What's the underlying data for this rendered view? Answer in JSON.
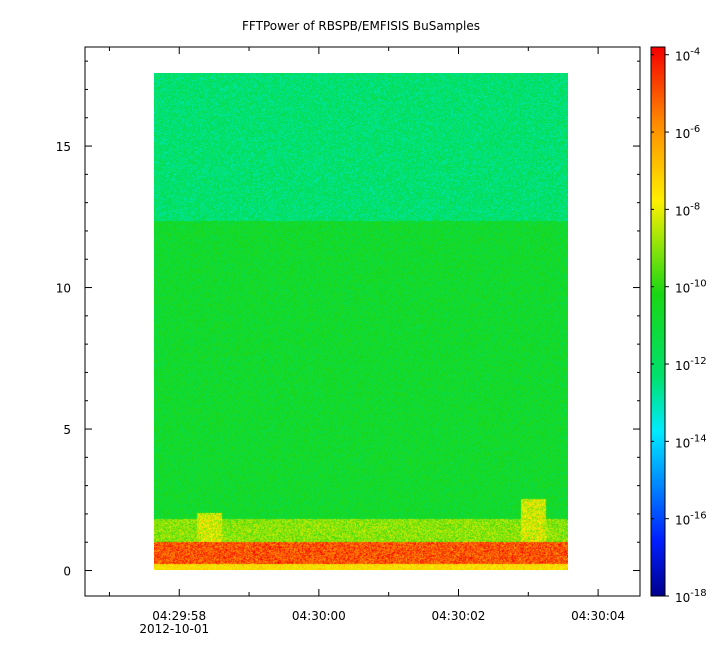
{
  "chart_data": {
    "type": "heatmap",
    "title": "FFTPower of RBSPB/EMFISIS  BuSamples",
    "xlabel": "",
    "ylabel": "",
    "x_ticks": [
      {
        "label": "04:29:58",
        "sublabel": "2012-10-01",
        "t": -2
      },
      {
        "label": "04:30:00",
        "sublabel": "",
        "t": 0
      },
      {
        "label": "04:30:02",
        "sublabel": "",
        "t": 2
      },
      {
        "label": "04:30:04",
        "sublabel": "",
        "t": 4
      }
    ],
    "xlim": [
      -3.35,
      4.6
    ],
    "x_data_range": [
      -2.4,
      3.6
    ],
    "y_ticks": [
      0,
      5,
      10,
      15
    ],
    "ylim": [
      -0.9,
      18.5
    ],
    "y_data_range": [
      0,
      17.5
    ],
    "colorbar": {
      "scale": "log",
      "range_exponent": [
        -18,
        -3.8
      ],
      "ticks": [
        {
          "base": "10",
          "exp": "-4",
          "e": -4
        },
        {
          "base": "10",
          "exp": "-6",
          "e": -6
        },
        {
          "base": "10",
          "exp": "-8",
          "e": -8
        },
        {
          "base": "10",
          "exp": "-10",
          "e": -10
        },
        {
          "base": "10",
          "exp": "-12",
          "e": -12
        },
        {
          "base": "10",
          "exp": "-14",
          "e": -14
        },
        {
          "base": "10",
          "exp": "-16",
          "e": -16
        },
        {
          "base": "10",
          "exp": "-18",
          "e": -18
        }
      ]
    },
    "bands": [
      {
        "y_from": 12.3,
        "y_to": 17.5,
        "log_power": -12.2
      },
      {
        "y_from": 1.8,
        "y_to": 12.3,
        "log_power": -10.8
      },
      {
        "y_from": 1.0,
        "y_to": 1.8,
        "log_power": -9.0
      },
      {
        "y_from": 0.2,
        "y_to": 1.0,
        "log_power": -5.0
      },
      {
        "y_from": 0.0,
        "y_to": 0.2,
        "log_power": -7.5
      }
    ],
    "bursts": [
      {
        "t": -1.6,
        "y_to": 2.0,
        "log_power": -9.0
      },
      {
        "t": 3.1,
        "y_to": 2.5,
        "log_power": -9.0
      }
    ],
    "colors": {
      "axis": "#000000",
      "background": "#ffffff"
    }
  }
}
